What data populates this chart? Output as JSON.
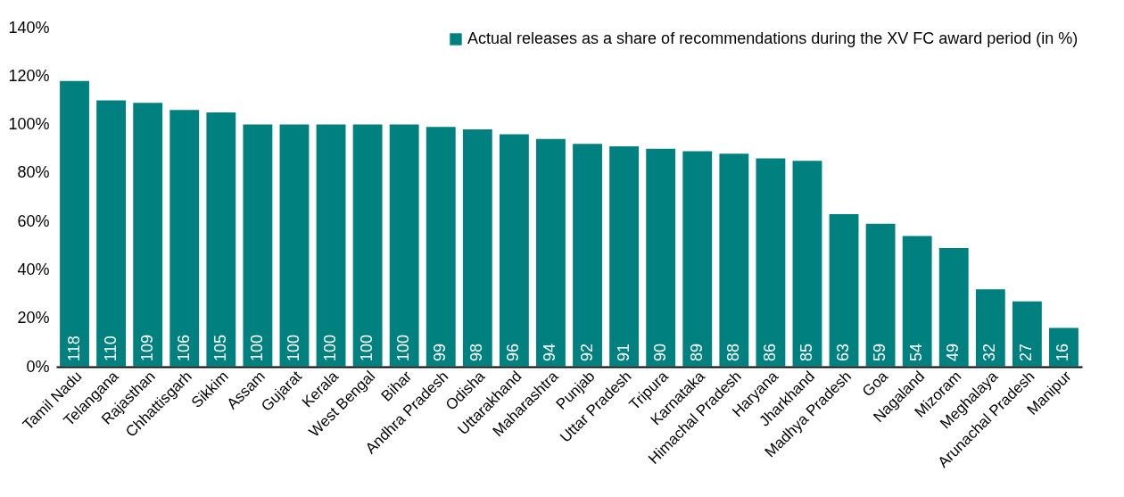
{
  "chart_data": {
    "type": "bar",
    "categories": [
      "Tamil Nadu",
      "Telangana",
      "Rajasthan",
      "Chhattisgarh",
      "Sikkim",
      "Assam",
      "Gujarat",
      "Kerala",
      "West Bengal",
      "Bihar",
      "Andhra Pradesh",
      "Odisha",
      "Uttarakhand",
      "Maharashtra",
      "Punjab",
      "Uttar Pradesh",
      "Tripura",
      "Karnataka",
      "Himachal Pradesh",
      "Haryana",
      "Jharkhand",
      "Madhya Pradesh",
      "Goa",
      "Nagaland",
      "Mizoram",
      "Meghalaya",
      "Arunachal Pradesh",
      "Manipur"
    ],
    "series": [
      {
        "name": "Actual releases as a share of recommendations during the XV FC award period (in %)",
        "color": "#00807f",
        "values": [
          118,
          110,
          109,
          106,
          105,
          100,
          100,
          100,
          100,
          100,
          99,
          98,
          96,
          94,
          92,
          91,
          90,
          89,
          88,
          86,
          85,
          63,
          59,
          54,
          49,
          32,
          27,
          16
        ]
      }
    ],
    "ylim": [
      0,
      140
    ],
    "yticks": [
      {
        "value": 0,
        "label": "0%"
      },
      {
        "value": 20,
        "label": "20%"
      },
      {
        "value": 40,
        "label": "40%"
      },
      {
        "value": 60,
        "label": "60%"
      },
      {
        "value": 80,
        "label": "80%"
      },
      {
        "value": 100,
        "label": "100%"
      },
      {
        "value": 120,
        "label": "120%"
      },
      {
        "value": 140,
        "label": "140%"
      }
    ],
    "data_labels": true,
    "legend": "top right",
    "grid": false
  }
}
